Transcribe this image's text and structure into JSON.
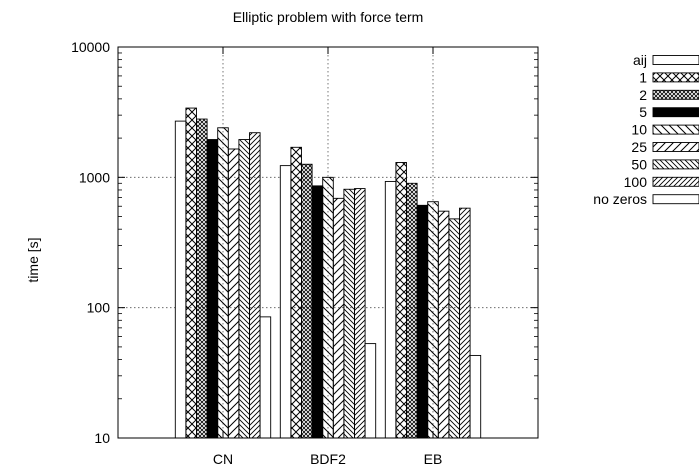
{
  "chart_data": {
    "type": "bar",
    "title": "Elliptic problem with force term",
    "xlabel": "",
    "ylabel": "time [s]",
    "yscale": "log",
    "ylim": [
      10,
      10000
    ],
    "yticks": [
      10,
      100,
      1000,
      10000
    ],
    "grid": true,
    "legend_position": "right",
    "categories": [
      "CN",
      "BDF2",
      "EB"
    ],
    "series": [
      {
        "name": "aij",
        "pattern": "empty",
        "values": [
          2700,
          1230,
          930
        ]
      },
      {
        "name": "1",
        "pattern": "crosshatch",
        "values": [
          3400,
          1700,
          1300
        ]
      },
      {
        "name": "2",
        "pattern": "fine-crosshatch",
        "values": [
          2800,
          1260,
          900
        ]
      },
      {
        "name": "5",
        "pattern": "solid",
        "values": [
          1950,
          860,
          610
        ]
      },
      {
        "name": "10",
        "pattern": "diag-back",
        "values": [
          2400,
          1000,
          650
        ]
      },
      {
        "name": "25",
        "pattern": "diag-forward",
        "values": [
          1650,
          690,
          550
        ]
      },
      {
        "name": "50",
        "pattern": "diag-back-dense",
        "values": [
          1950,
          810,
          480
        ]
      },
      {
        "name": "100",
        "pattern": "diag-forward-dense",
        "values": [
          2200,
          820,
          580
        ]
      },
      {
        "name": "no zeros",
        "pattern": "empty",
        "values": [
          85,
          53,
          43
        ]
      }
    ]
  }
}
